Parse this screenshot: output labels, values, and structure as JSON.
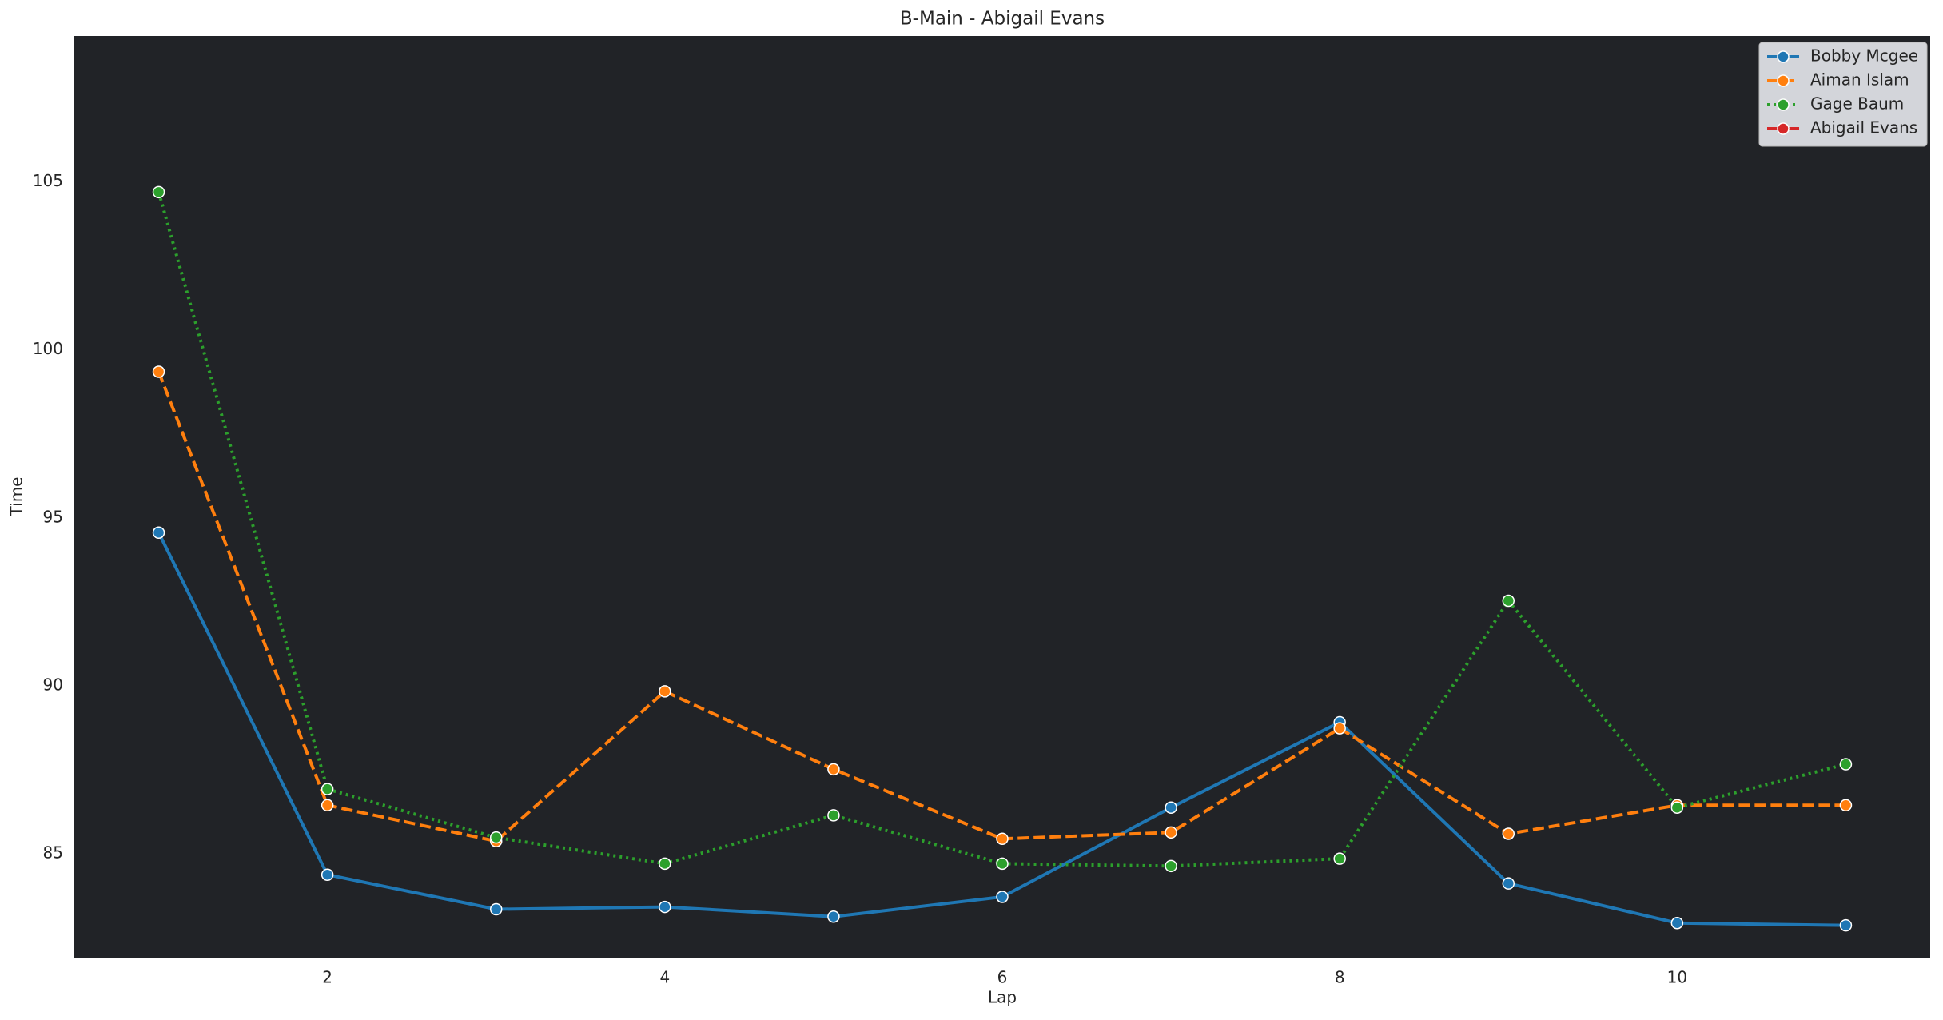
{
  "chart_data": {
    "type": "line",
    "title": "B-Main - Abigail Evans",
    "xlabel": "Lap",
    "ylabel": "Time",
    "x": [
      1,
      2,
      3,
      4,
      5,
      6,
      7,
      8,
      9,
      10,
      11
    ],
    "xlim": [
      0.5,
      11.5
    ],
    "xticks": [
      2,
      4,
      6,
      8,
      10
    ],
    "ylim": [
      81.9,
      109.35
    ],
    "yticks": [
      85,
      90,
      95,
      100,
      105
    ],
    "grid": false,
    "legend": "upper right",
    "series": [
      {
        "name": "Bobby Mcgee",
        "color": "#1f77b4",
        "dash": "solid",
        "values": [
          94.56,
          84.37,
          83.34,
          83.41,
          83.12,
          83.71,
          86.37,
          88.91,
          84.11,
          82.93,
          82.86
        ]
      },
      {
        "name": "Aiman Islam",
        "color": "#ff7f0e",
        "dash": "dashed",
        "values": [
          99.35,
          86.44,
          85.37,
          89.83,
          87.51,
          85.44,
          85.63,
          88.73,
          85.59,
          86.44,
          86.44
        ]
      },
      {
        "name": "Gage Baum",
        "color": "#2ca02c",
        "dash": "dotted",
        "values": [
          104.7,
          86.92,
          85.48,
          84.7,
          86.14,
          84.7,
          84.63,
          84.85,
          92.53,
          86.37,
          87.66
        ]
      },
      {
        "name": "Abigail Evans",
        "color": "#d62728",
        "dash": "dashdot",
        "values": [
          null,
          null,
          null,
          null,
          null,
          null,
          null,
          null,
          null,
          null,
          null
        ]
      }
    ]
  }
}
